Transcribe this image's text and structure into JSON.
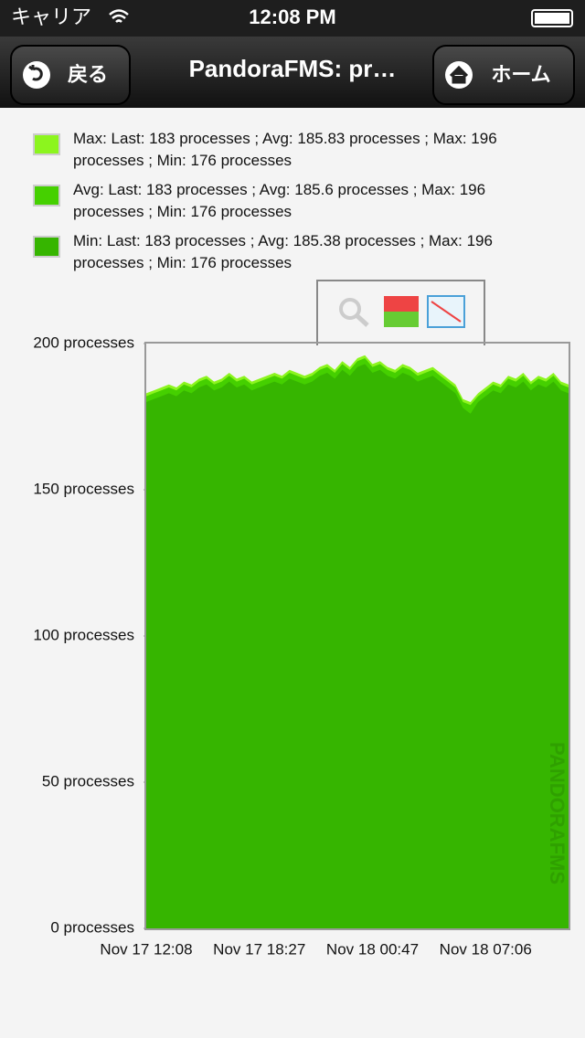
{
  "status_bar": {
    "carrier": "キャリア",
    "time": "12:08 PM"
  },
  "nav": {
    "back": "戻る",
    "title": "PandoraFMS: pr…",
    "home": "ホーム"
  },
  "watermark": "PANDORAFMS",
  "chart_data": {
    "type": "area",
    "categories": [
      "Nov 17 12:08",
      null,
      null,
      null,
      null,
      null,
      null,
      null,
      null,
      null,
      null,
      null,
      null,
      null,
      null,
      "Nov 17 18:27",
      null,
      null,
      null,
      null,
      null,
      null,
      null,
      null,
      null,
      null,
      null,
      null,
      null,
      null,
      "Nov 18 00:47",
      null,
      null,
      null,
      null,
      null,
      null,
      null,
      null,
      null,
      null,
      null,
      null,
      null,
      null,
      "Nov 18 07:06",
      null,
      null,
      null,
      null,
      null,
      null,
      null,
      null,
      null,
      null,
      null
    ],
    "series": [
      {
        "name": "Max: Last: 183 processes ; Avg: 185.83 processes ; Max: 196 processes ; Min: 176 processes",
        "color": "#8cf51e",
        "values": [
          183,
          184,
          185,
          186,
          185,
          187,
          186,
          188,
          189,
          187,
          188,
          190,
          188,
          189,
          187,
          188,
          189,
          190,
          189,
          191,
          190,
          189,
          190,
          192,
          193,
          191,
          194,
          192,
          195,
          196,
          193,
          194,
          192,
          191,
          193,
          192,
          190,
          191,
          192,
          190,
          188,
          186,
          181,
          180,
          183,
          185,
          187,
          186,
          189,
          188,
          190,
          187,
          189,
          188,
          190,
          187,
          186
        ]
      },
      {
        "name": "Avg: Last: 183 processes ; Avg: 185.6 processes ; Max: 196 processes ; Min: 176 processes",
        "color": "#45d000",
        "values": [
          182,
          183,
          184,
          185,
          184,
          186,
          185,
          187,
          188,
          186,
          187,
          189,
          187,
          188,
          186,
          187,
          188,
          189,
          188,
          190,
          189,
          188,
          189,
          191,
          192,
          190,
          193,
          191,
          194,
          195,
          192,
          193,
          191,
          190,
          192,
          191,
          189,
          190,
          191,
          189,
          187,
          185,
          180,
          179,
          182,
          184,
          186,
          185,
          188,
          187,
          189,
          186,
          188,
          187,
          189,
          186,
          185
        ]
      },
      {
        "name": "Min: Last: 183 processes ; Avg: 185.38 processes ; Max: 196 processes ; Min: 176 processes",
        "color": "#36b500",
        "values": [
          180,
          181,
          182,
          183,
          182,
          184,
          183,
          185,
          186,
          184,
          185,
          187,
          185,
          186,
          184,
          185,
          186,
          187,
          186,
          188,
          187,
          186,
          187,
          189,
          190,
          188,
          191,
          189,
          192,
          193,
          190,
          191,
          189,
          188,
          190,
          189,
          187,
          188,
          189,
          187,
          185,
          183,
          178,
          176,
          180,
          182,
          184,
          183,
          186,
          185,
          187,
          184,
          186,
          185,
          187,
          184,
          183
        ]
      }
    ],
    "ylim": [
      0,
      200
    ],
    "yticks": [
      {
        "value": 0,
        "label": "0 processes"
      },
      {
        "value": 50,
        "label": "50 processes"
      },
      {
        "value": 100,
        "label": "100 processes"
      },
      {
        "value": 150,
        "label": "150 processes"
      },
      {
        "value": 200,
        "label": "200 processes"
      }
    ]
  }
}
